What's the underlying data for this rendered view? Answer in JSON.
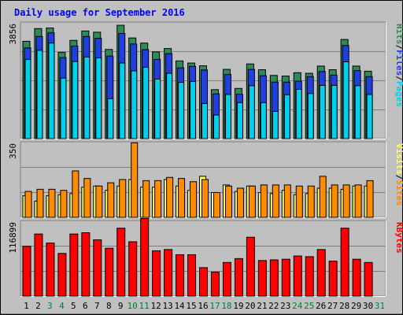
{
  "chart_data": {
    "type": "bar",
    "title": "Daily usage for September 2016",
    "days": [
      "1",
      "2",
      "3",
      "4",
      "5",
      "6",
      "7",
      "8",
      "9",
      "10",
      "11",
      "12",
      "13",
      "14",
      "15",
      "16",
      "17",
      "18",
      "19",
      "20",
      "21",
      "22",
      "23",
      "24",
      "25",
      "26",
      "27",
      "28",
      "29",
      "30",
      "31"
    ],
    "weekend_days": [
      "3",
      "4",
      "10",
      "11",
      "17",
      "18",
      "24",
      "25",
      "31"
    ],
    "panels": [
      {
        "name": "hits-files-pages",
        "max_label": "3856",
        "ymax": 3856,
        "legend": [
          "Pages",
          "Files",
          "Hits"
        ],
        "series": [
          {
            "name": "Hits",
            "color": "#2e8b57",
            "values": [
              3220,
              3640,
              3660,
              2850,
              3250,
              3560,
              3520,
              2950,
              3750,
              3330,
              3160,
              2870,
              2980,
              2570,
              2500,
              2410,
              1620,
              2290,
              1660,
              2470,
              2280,
              2090,
              2070,
              2180,
              2160,
              2400,
              2280,
              3280,
              2400,
              2230,
              0
            ]
          },
          {
            "name": "Files",
            "color": "#1f3fdf",
            "values": [
              3000,
              3380,
              3500,
              2680,
              3060,
              3380,
              3320,
              2730,
              3480,
              3130,
              2940,
              2620,
              2810,
              2340,
              2390,
              2270,
              1480,
              2120,
              1470,
              2290,
              2080,
              1870,
              1870,
              1900,
              2050,
              2220,
              2100,
              3080,
              2250,
              2050,
              0
            ]
          },
          {
            "name": "Pages",
            "color": "#00d0f0",
            "values": [
              2620,
              2920,
              3160,
              2000,
              2550,
              2700,
              2670,
              1320,
              2500,
              2240,
              2360,
              1970,
              2160,
              1860,
              1890,
              1160,
              780,
              1460,
              1190,
              1750,
              1190,
              900,
              1450,
              1630,
              1490,
              1760,
              1760,
              2540,
              1750,
              1460,
              0
            ]
          }
        ]
      },
      {
        "name": "visits-sites",
        "max_label": "350",
        "ymax": 350,
        "legend": [
          "Sites",
          "Visits"
        ],
        "series": [
          {
            "name": "Visits",
            "color": "#ffff66",
            "values": [
              100,
              75,
              100,
              105,
              110,
              140,
              145,
              125,
              145,
              175,
              140,
              140,
              175,
              145,
              125,
              190,
              115,
              150,
              120,
              145,
              115,
              110,
              125,
              105,
              110,
              135,
              135,
              130,
              145,
              145,
              0
            ]
          },
          {
            "name": "Sites",
            "color": "#ff8c00",
            "values": [
              120,
              130,
              130,
              125,
              215,
              180,
              145,
              160,
              175,
              345,
              170,
              170,
              185,
              180,
              165,
              175,
              115,
              145,
              135,
              145,
              150,
              150,
              150,
              145,
              145,
              190,
              150,
              150,
              150,
              170,
              0
            ]
          }
        ]
      },
      {
        "name": "kbytes",
        "max_label": "116899",
        "ymax": 116899,
        "legend": [
          "KBytes"
        ],
        "series": [
          {
            "name": "KBytes",
            "color": "#ff0000",
            "values": [
              77000,
              96000,
              82000,
              66000,
              96000,
              98000,
              87000,
              74000,
              105000,
              84000,
              120000,
              70000,
              72000,
              64000,
              64000,
              44000,
              37000,
              52000,
              58000,
              91000,
              55000,
              56000,
              57000,
              62000,
              61000,
              72000,
              54000,
              105000,
              57000,
              52000,
              0
            ]
          }
        ]
      }
    ]
  }
}
